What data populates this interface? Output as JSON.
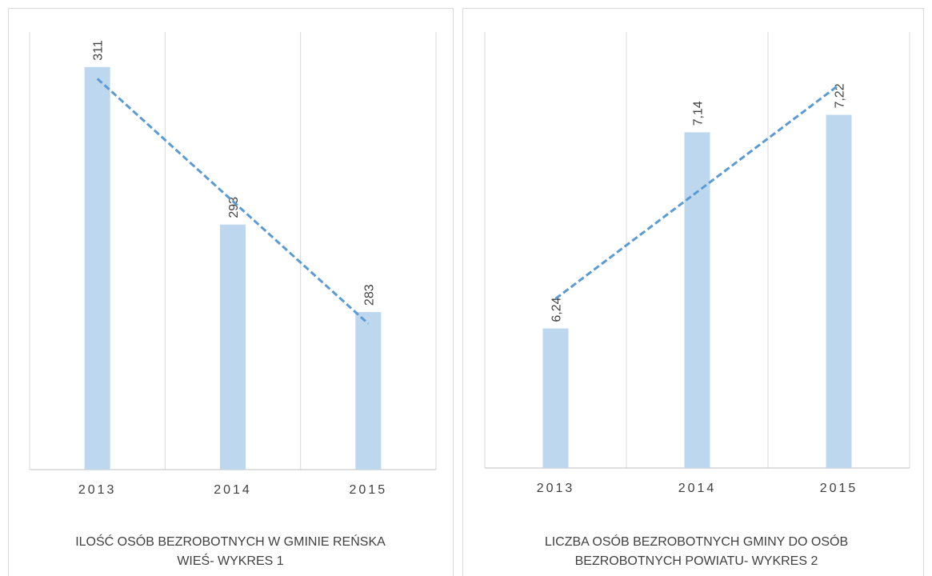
{
  "chart_data": [
    {
      "type": "bar",
      "title": "ILOŚĆ OSÓB BEZROBOTNYCH W GMINIE REŃSKA WIEŚ- WYKRES 1",
      "categories": [
        "2013",
        "2014",
        "2015"
      ],
      "values": [
        311,
        293,
        283
      ],
      "color": "#bdd7ee",
      "trendline_color": "#5b9bd5",
      "trendline": "linear",
      "ylim": [
        265,
        315
      ],
      "grid": true
    },
    {
      "type": "bar",
      "title": "LICZBA OSÓB BEZROBOTNYCH GMINY DO OSÓB BEZROBOTNYCH POWIATU- WYKRES 2",
      "categories": [
        "2013",
        "2014",
        "2015"
      ],
      "values": [
        6.24,
        7.14,
        7.22
      ],
      "value_labels": [
        "6,24",
        "7,14",
        "7,22"
      ],
      "color": "#bdd7ee",
      "trendline_color": "#5b9bd5",
      "trendline": "linear",
      "ylim": [
        5.6,
        7.6
      ],
      "grid": true
    }
  ]
}
